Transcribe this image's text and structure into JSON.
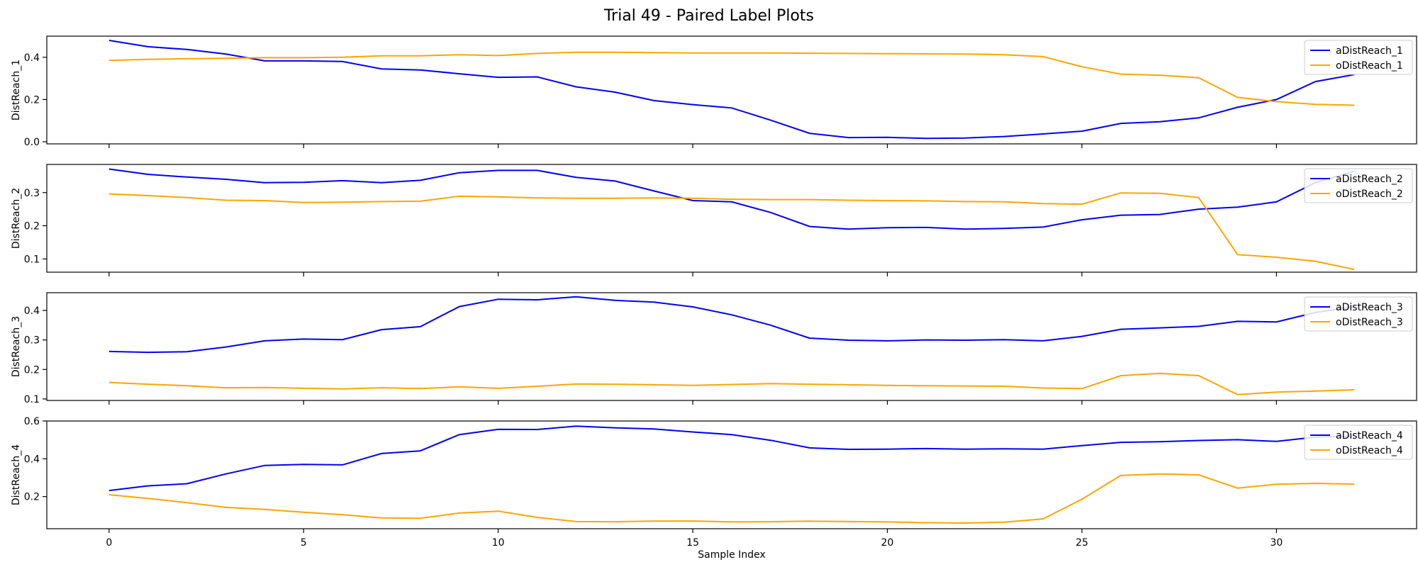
{
  "title": "Trial 49 - Paired Label Plots",
  "colors": {
    "a": "#0000ff",
    "o": "#ffa500"
  },
  "chart_data": [
    {
      "type": "line",
      "ylabel": "DistReach_1",
      "xlim": [
        -1.6,
        33.6
      ],
      "ylim": [
        -0.01,
        0.5
      ],
      "yticks": [
        0.0,
        0.2,
        0.4
      ],
      "ytick_labels": [
        "0.0",
        "0.2",
        "0.4"
      ],
      "legend": "top-right",
      "series": [
        {
          "name": "aDistReach_1",
          "color": "#0000ff",
          "values": [
            0.48,
            0.45,
            0.437,
            0.415,
            0.383,
            0.383,
            0.38,
            0.345,
            0.34,
            0.322,
            0.305,
            0.307,
            0.26,
            0.235,
            0.195,
            0.176,
            0.16,
            0.102,
            0.04,
            0.02,
            0.021,
            0.016,
            0.018,
            0.025,
            0.037,
            0.05,
            0.087,
            0.095,
            0.113,
            0.163,
            0.2,
            0.285,
            0.318
          ]
        },
        {
          "name": "oDistReach_1",
          "color": "#ffa500",
          "values": [
            0.385,
            0.39,
            0.393,
            0.395,
            0.398,
            0.398,
            0.4,
            0.407,
            0.407,
            0.412,
            0.408,
            0.418,
            0.424,
            0.424,
            0.422,
            0.42,
            0.42,
            0.42,
            0.419,
            0.418,
            0.417,
            0.416,
            0.415,
            0.412,
            0.403,
            0.355,
            0.32,
            0.315,
            0.303,
            0.21,
            0.19,
            0.177,
            0.173
          ]
        }
      ]
    },
    {
      "type": "line",
      "ylabel": "DistReach_2",
      "xlim": [
        -1.6,
        33.6
      ],
      "ylim": [
        0.06,
        0.385
      ],
      "yticks": [
        0.1,
        0.2,
        0.3
      ],
      "ytick_labels": [
        "0.1",
        "0.2",
        "0.3"
      ],
      "legend": "top-right",
      "series": [
        {
          "name": "aDistReach_2",
          "color": "#0000ff",
          "values": [
            0.371,
            0.355,
            0.347,
            0.34,
            0.33,
            0.331,
            0.336,
            0.33,
            0.337,
            0.36,
            0.367,
            0.367,
            0.346,
            0.335,
            0.305,
            0.276,
            0.272,
            0.24,
            0.198,
            0.19,
            0.194,
            0.195,
            0.19,
            0.192,
            0.196,
            0.218,
            0.232,
            0.234,
            0.25,
            0.256,
            0.272,
            0.33,
            0.365
          ]
        },
        {
          "name": "oDistReach_2",
          "color": "#ffa500",
          "values": [
            0.296,
            0.291,
            0.285,
            0.277,
            0.276,
            0.27,
            0.271,
            0.273,
            0.274,
            0.289,
            0.287,
            0.284,
            0.283,
            0.283,
            0.284,
            0.283,
            0.28,
            0.279,
            0.279,
            0.277,
            0.276,
            0.275,
            0.273,
            0.272,
            0.267,
            0.265,
            0.299,
            0.298,
            0.285,
            0.113,
            0.105,
            0.093,
            0.068
          ]
        }
      ]
    },
    {
      "type": "line",
      "ylabel": "DistReach_3",
      "xlim": [
        -1.6,
        33.6
      ],
      "ylim": [
        0.095,
        0.46
      ],
      "yticks": [
        0.1,
        0.2,
        0.3,
        0.4
      ],
      "ytick_labels": [
        "0.1",
        "0.2",
        "0.3",
        "0.4"
      ],
      "legend": "top-right",
      "series": [
        {
          "name": "aDistReach_3",
          "color": "#0000ff",
          "values": [
            0.261,
            0.258,
            0.26,
            0.276,
            0.297,
            0.303,
            0.301,
            0.335,
            0.345,
            0.413,
            0.438,
            0.436,
            0.446,
            0.434,
            0.428,
            0.412,
            0.385,
            0.35,
            0.306,
            0.299,
            0.297,
            0.3,
            0.299,
            0.301,
            0.297,
            0.312,
            0.336,
            0.341,
            0.346,
            0.363,
            0.361,
            0.393,
            0.413
          ]
        },
        {
          "name": "oDistReach_3",
          "color": "#ffa500",
          "values": [
            0.156,
            0.15,
            0.145,
            0.138,
            0.139,
            0.136,
            0.134,
            0.138,
            0.135,
            0.141,
            0.136,
            0.143,
            0.151,
            0.15,
            0.148,
            0.146,
            0.149,
            0.152,
            0.15,
            0.148,
            0.146,
            0.145,
            0.144,
            0.143,
            0.137,
            0.135,
            0.179,
            0.187,
            0.179,
            0.115,
            0.123,
            0.127,
            0.131
          ]
        }
      ]
    },
    {
      "type": "line",
      "ylabel": "DistReach_4",
      "xlim": [
        -1.6,
        33.6
      ],
      "ylim": [
        0.03,
        0.6
      ],
      "yticks": [
        0.2,
        0.4,
        0.6
      ],
      "ytick_labels": [
        "0.2",
        "0.4",
        "0.6"
      ],
      "legend": "top-right",
      "series": [
        {
          "name": "aDistReach_4",
          "color": "#0000ff",
          "values": [
            0.232,
            0.257,
            0.268,
            0.32,
            0.365,
            0.37,
            0.368,
            0.428,
            0.442,
            0.528,
            0.556,
            0.555,
            0.573,
            0.564,
            0.558,
            0.542,
            0.528,
            0.498,
            0.458,
            0.45,
            0.451,
            0.454,
            0.451,
            0.453,
            0.451,
            0.47,
            0.487,
            0.49,
            0.497,
            0.501,
            0.492,
            0.515,
            0.52
          ]
        },
        {
          "name": "oDistReach_4",
          "color": "#ffa500",
          "values": [
            0.21,
            0.19,
            0.168,
            0.143,
            0.132,
            0.117,
            0.104,
            0.087,
            0.085,
            0.113,
            0.123,
            0.09,
            0.068,
            0.067,
            0.07,
            0.071,
            0.066,
            0.067,
            0.07,
            0.068,
            0.066,
            0.062,
            0.06,
            0.065,
            0.082,
            0.186,
            0.312,
            0.32,
            0.315,
            0.245,
            0.265,
            0.27,
            0.266
          ]
        }
      ]
    }
  ],
  "xaxis": {
    "label": "Sample Index",
    "ticks": [
      0,
      5,
      10,
      15,
      20,
      25,
      30
    ],
    "tick_labels": [
      "0",
      "5",
      "10",
      "15",
      "20",
      "25",
      "30"
    ]
  }
}
